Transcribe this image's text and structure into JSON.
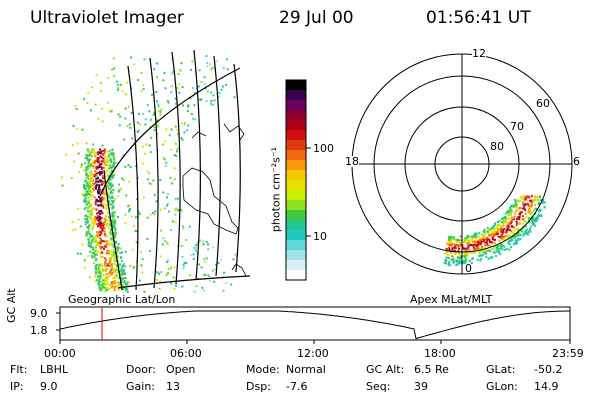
{
  "header": {
    "instrument": "Ultraviolet Imager",
    "date": "29 Jul 00",
    "time": "01:56:41 UT"
  },
  "colorbar": {
    "unit_label": "photon cm⁻²s⁻¹",
    "scale": "log",
    "ticks": [
      "100",
      "10"
    ],
    "colors": [
      "#000000",
      "#3a0050",
      "#6a0060",
      "#8c0030",
      "#b00010",
      "#d01010",
      "#e03a10",
      "#f06a10",
      "#f89a10",
      "#f8c800",
      "#e8e000",
      "#c8f000",
      "#90e020",
      "#40c840",
      "#20c890",
      "#20c8c0",
      "#60d8d8",
      "#a0e4ea",
      "#d8f0f4",
      "#ffffff"
    ]
  },
  "left_map": {
    "label": "Geographic Lat/Lon"
  },
  "right_map": {
    "label": "Apex MLat/MLT",
    "mlt_labels": {
      "top": "12",
      "left": "18",
      "right": "6",
      "bottom": "0"
    },
    "lat_labels": [
      "60",
      "70",
      "80"
    ]
  },
  "altitude_plot": {
    "ylabel": "GC Alt",
    "y_ticks": [
      "9.0",
      "1.8"
    ],
    "x_ticks": [
      "00:00",
      "06:00",
      "12:00",
      "18:00",
      "23:59"
    ],
    "marker_color": "#e00000"
  },
  "info": {
    "filter_label": "Flt:",
    "filter_value": "LBHL",
    "ip_label": "IP:",
    "ip_value": "9.0",
    "door_label": "Door:",
    "door_value": "Open",
    "gain_label": "Gain:",
    "gain_value": "13",
    "mode_label": "Mode:",
    "mode_value": "Normal",
    "dsp_label": "Dsp:",
    "dsp_value": "-7.6",
    "gcalt_label": "GC Alt:",
    "gcalt_value": "6.5 Re",
    "seq_label": "Seq:",
    "seq_value": "39",
    "glat_label": "GLat:",
    "glat_value": "-50.2",
    "glon_label": "GLon:",
    "glon_value": "14.9"
  }
}
